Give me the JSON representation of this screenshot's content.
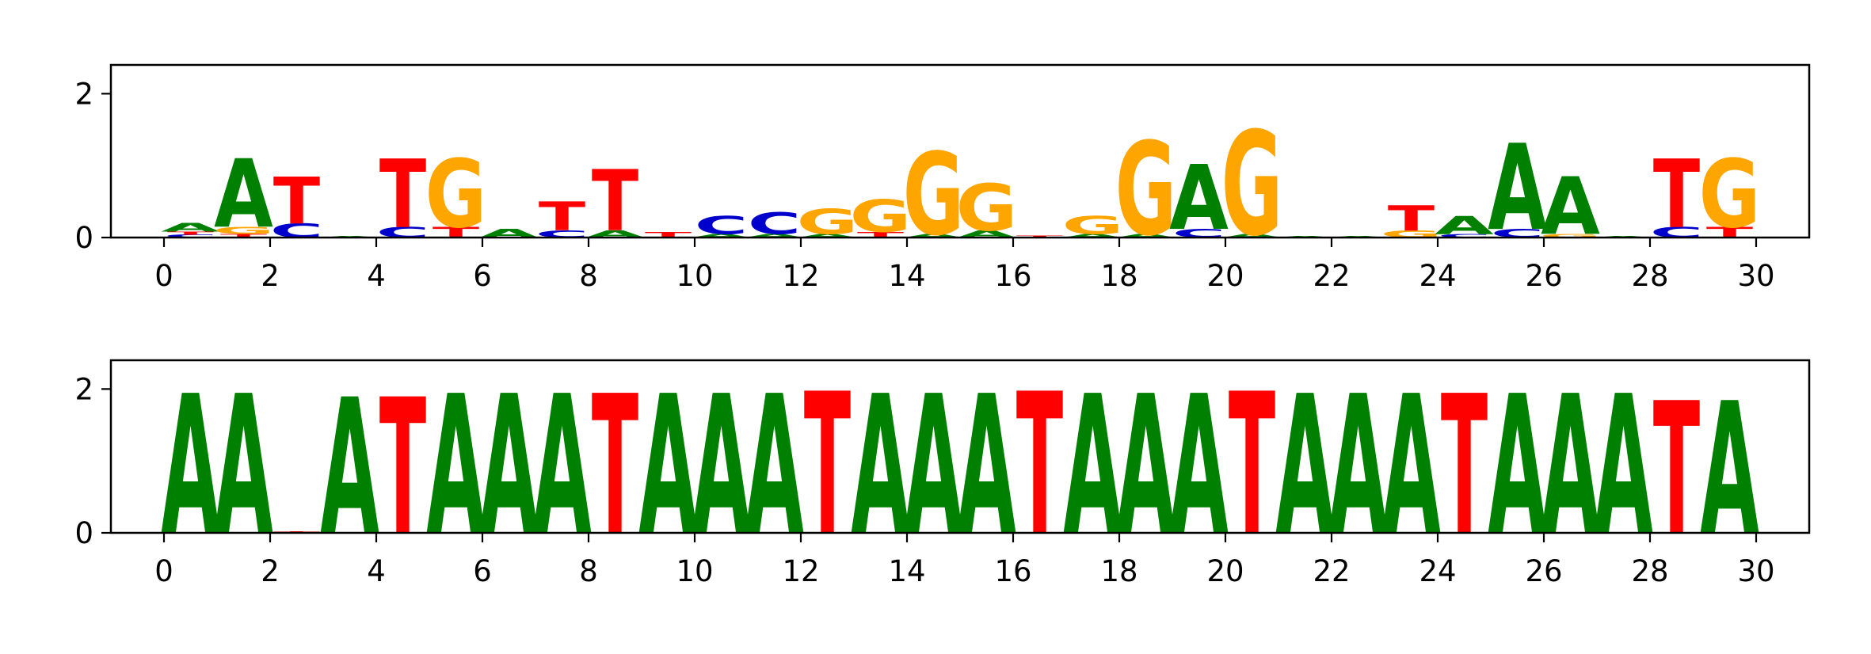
{
  "colors": {
    "A": "#008000",
    "C": "#0000cc",
    "G": "#ffa500",
    "T": "#ff0000"
  },
  "chart_data": [
    {
      "type": "sequence-logo",
      "title": "",
      "xlabel": "",
      "ylabel": "",
      "xlim": [
        -1,
        31
      ],
      "ylim": [
        0,
        2.4
      ],
      "xticks": [
        0,
        2,
        4,
        6,
        8,
        10,
        12,
        14,
        16,
        18,
        20,
        22,
        24,
        26,
        28,
        30
      ],
      "yticks": [
        0,
        2
      ],
      "positions": [
        {
          "pos": 0,
          "stack": [
            [
              "C",
              0.04
            ],
            [
              "T",
              0.04
            ],
            [
              "A",
              0.12
            ]
          ]
        },
        {
          "pos": 1,
          "stack": [
            [
              "T",
              0.05
            ],
            [
              "G",
              0.1
            ],
            [
              "A",
              0.95
            ]
          ]
        },
        {
          "pos": 2,
          "stack": [
            [
              "C",
              0.2
            ],
            [
              "T",
              0.65
            ]
          ]
        },
        {
          "pos": 3,
          "stack": [
            [
              "A",
              0.02
            ]
          ]
        },
        {
          "pos": 4,
          "stack": [
            [
              "C",
              0.15
            ],
            [
              "T",
              0.95
            ]
          ]
        },
        {
          "pos": 5,
          "stack": [
            [
              "T",
              0.15
            ],
            [
              "G",
              0.95
            ]
          ]
        },
        {
          "pos": 6,
          "stack": [
            [
              "A",
              0.12
            ]
          ]
        },
        {
          "pos": 7,
          "stack": [
            [
              "C",
              0.1
            ],
            [
              "T",
              0.4
            ]
          ]
        },
        {
          "pos": 8,
          "stack": [
            [
              "A",
              0.1
            ],
            [
              "T",
              0.85
            ]
          ]
        },
        {
          "pos": 9,
          "stack": [
            [
              "T",
              0.08
            ]
          ]
        },
        {
          "pos": 10,
          "stack": [
            [
              "A",
              0.05
            ],
            [
              "C",
              0.25
            ]
          ]
        },
        {
          "pos": 11,
          "stack": [
            [
              "A",
              0.05
            ],
            [
              "C",
              0.3
            ]
          ]
        },
        {
          "pos": 12,
          "stack": [
            [
              "A",
              0.05
            ],
            [
              "G",
              0.35
            ]
          ]
        },
        {
          "pos": 13,
          "stack": [
            [
              "T",
              0.08
            ],
            [
              "G",
              0.45
            ]
          ]
        },
        {
          "pos": 14,
          "stack": [
            [
              "A",
              0.05
            ],
            [
              "G",
              1.15
            ]
          ]
        },
        {
          "pos": 15,
          "stack": [
            [
              "A",
              0.1
            ],
            [
              "G",
              0.65
            ]
          ]
        },
        {
          "pos": 16,
          "stack": [
            [
              "T",
              0.03
            ]
          ]
        },
        {
          "pos": 17,
          "stack": [
            [
              "A",
              0.05
            ],
            [
              "G",
              0.25
            ]
          ]
        },
        {
          "pos": 18,
          "stack": [
            [
              "A",
              0.05
            ],
            [
              "G",
              1.3
            ]
          ]
        },
        {
          "pos": 19,
          "stack": [
            [
              "C",
              0.12
            ],
            [
              "A",
              0.9
            ]
          ]
        },
        {
          "pos": 20,
          "stack": [
            [
              "A",
              0.05
            ],
            [
              "G",
              1.45
            ]
          ]
        },
        {
          "pos": 21,
          "stack": [
            [
              "A",
              0.02
            ]
          ]
        },
        {
          "pos": 22,
          "stack": [
            [
              "A",
              0.02
            ]
          ]
        },
        {
          "pos": 23,
          "stack": [
            [
              "G",
              0.1
            ],
            [
              "T",
              0.35
            ]
          ]
        },
        {
          "pos": 24,
          "stack": [
            [
              "C",
              0.05
            ],
            [
              "A",
              0.25
            ]
          ]
        },
        {
          "pos": 25,
          "stack": [
            [
              "C",
              0.12
            ],
            [
              "A",
              1.2
            ]
          ]
        },
        {
          "pos": 26,
          "stack": [
            [
              "G",
              0.05
            ],
            [
              "A",
              0.8
            ]
          ]
        },
        {
          "pos": 27,
          "stack": [
            [
              "A",
              0.02
            ]
          ]
        },
        {
          "pos": 28,
          "stack": [
            [
              "C",
              0.15
            ],
            [
              "T",
              0.95
            ]
          ]
        },
        {
          "pos": 29,
          "stack": [
            [
              "T",
              0.15
            ],
            [
              "G",
              0.95
            ]
          ]
        }
      ]
    },
    {
      "type": "sequence-logo",
      "title": "",
      "xlabel": "",
      "ylabel": "",
      "xlim": [
        -1,
        31
      ],
      "ylim": [
        0,
        2.4
      ],
      "xticks": [
        0,
        2,
        4,
        6,
        8,
        10,
        12,
        14,
        16,
        18,
        20,
        22,
        24,
        26,
        28,
        30
      ],
      "yticks": [
        0,
        2
      ],
      "positions": [
        {
          "pos": 0,
          "stack": [
            [
              "A",
              1.95
            ]
          ]
        },
        {
          "pos": 1,
          "stack": [
            [
              "A",
              1.95
            ]
          ]
        },
        {
          "pos": 2,
          "stack": [
            [
              "T",
              0.02
            ]
          ]
        },
        {
          "pos": 3,
          "stack": [
            [
              "A",
              1.9
            ]
          ]
        },
        {
          "pos": 4,
          "stack": [
            [
              "T",
              1.9
            ]
          ]
        },
        {
          "pos": 5,
          "stack": [
            [
              "A",
              1.95
            ]
          ]
        },
        {
          "pos": 6,
          "stack": [
            [
              "A",
              1.95
            ]
          ]
        },
        {
          "pos": 7,
          "stack": [
            [
              "A",
              1.95
            ]
          ]
        },
        {
          "pos": 8,
          "stack": [
            [
              "T",
              1.95
            ]
          ]
        },
        {
          "pos": 9,
          "stack": [
            [
              "A",
              1.95
            ]
          ]
        },
        {
          "pos": 10,
          "stack": [
            [
              "A",
              1.95
            ]
          ]
        },
        {
          "pos": 11,
          "stack": [
            [
              "A",
              1.95
            ]
          ]
        },
        {
          "pos": 12,
          "stack": [
            [
              "T",
              1.98
            ]
          ]
        },
        {
          "pos": 13,
          "stack": [
            [
              "A",
              1.95
            ]
          ]
        },
        {
          "pos": 14,
          "stack": [
            [
              "A",
              1.95
            ]
          ]
        },
        {
          "pos": 15,
          "stack": [
            [
              "A",
              1.95
            ]
          ]
        },
        {
          "pos": 16,
          "stack": [
            [
              "T",
              1.98
            ]
          ]
        },
        {
          "pos": 17,
          "stack": [
            [
              "A",
              1.95
            ]
          ]
        },
        {
          "pos": 18,
          "stack": [
            [
              "A",
              1.95
            ]
          ]
        },
        {
          "pos": 19,
          "stack": [
            [
              "A",
              1.95
            ]
          ]
        },
        {
          "pos": 20,
          "stack": [
            [
              "T",
              1.98
            ]
          ]
        },
        {
          "pos": 21,
          "stack": [
            [
              "A",
              1.95
            ]
          ]
        },
        {
          "pos": 22,
          "stack": [
            [
              "A",
              1.95
            ]
          ]
        },
        {
          "pos": 23,
          "stack": [
            [
              "A",
              1.95
            ]
          ]
        },
        {
          "pos": 24,
          "stack": [
            [
              "T",
              1.95
            ]
          ]
        },
        {
          "pos": 25,
          "stack": [
            [
              "A",
              1.95
            ]
          ]
        },
        {
          "pos": 26,
          "stack": [
            [
              "A",
              1.95
            ]
          ]
        },
        {
          "pos": 27,
          "stack": [
            [
              "A",
              1.95
            ]
          ]
        },
        {
          "pos": 28,
          "stack": [
            [
              "T",
              1.85
            ]
          ]
        },
        {
          "pos": 29,
          "stack": [
            [
              "A",
              1.85
            ]
          ]
        }
      ]
    }
  ]
}
